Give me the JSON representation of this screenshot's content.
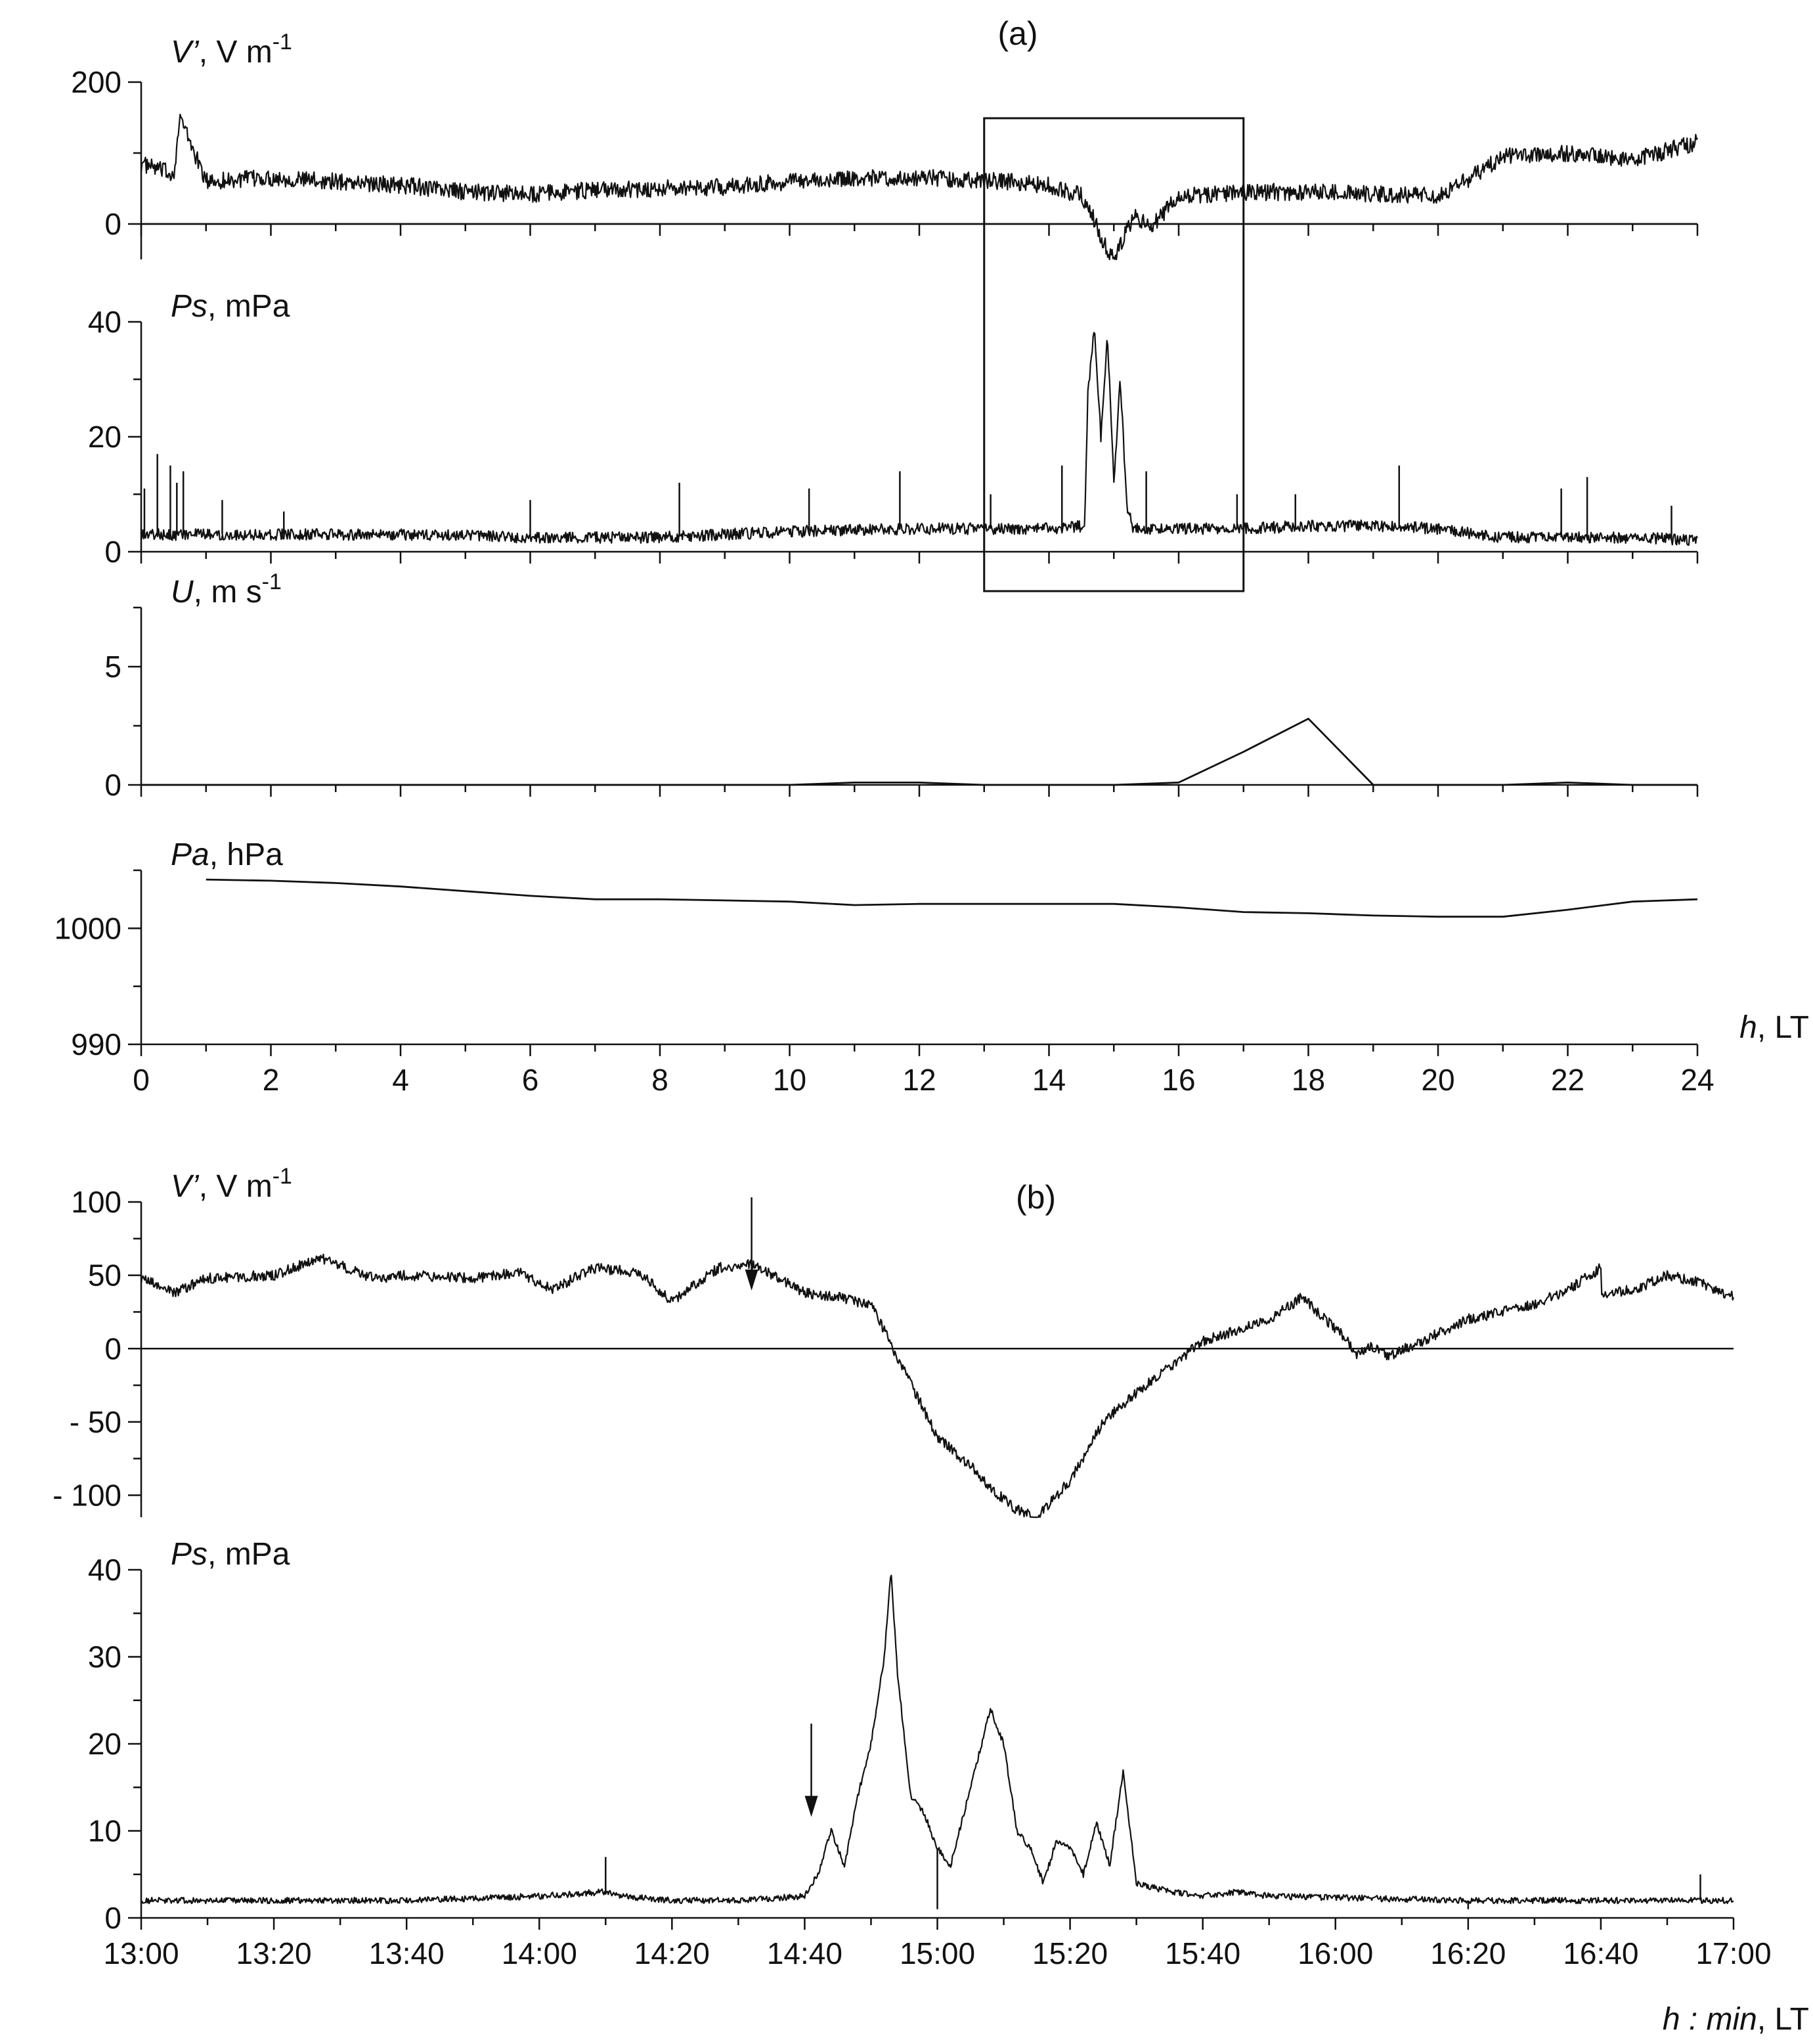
{
  "figure": {
    "background": "#ffffff",
    "ink": "#111111"
  },
  "chart_data": [
    {
      "id": "a1",
      "type": "line",
      "panel_label": "(a)",
      "ylabel_var": "V’",
      "ylabel_unit": "V m",
      "ylabel_exp": "-1",
      "ylim": [
        -50,
        200
      ],
      "yticks": [
        0,
        200
      ],
      "xlim": [
        0,
        24
      ],
      "zero_line": true,
      "highlight_box_x": [
        13,
        17
      ],
      "series": [
        {
          "x": [
            0,
            0.5,
            0.6,
            1,
            2,
            3,
            4,
            5,
            6,
            7,
            8,
            9,
            10,
            11,
            12,
            13,
            14,
            14.5,
            14.7,
            14.8,
            15,
            15.3,
            15.6,
            16,
            17,
            18,
            19,
            20,
            20.5,
            21,
            22,
            23,
            24
          ],
          "y": [
            85,
            70,
            150,
            60,
            65,
            60,
            55,
            45,
            42,
            48,
            50,
            52,
            60,
            65,
            65,
            62,
            55,
            40,
            5,
            -20,
            -50,
            10,
            -2,
            40,
            45,
            45,
            42,
            40,
            65,
            95,
            100,
            90,
            115
          ]
        }
      ]
    },
    {
      "id": "a2",
      "type": "line",
      "ylabel_var": "Ps",
      "ylabel_unit": ", mPa",
      "ylim": [
        0,
        40
      ],
      "yticks": [
        0,
        20,
        40
      ],
      "xlim": [
        0,
        24
      ],
      "series": [
        {
          "x": [
            0,
            1,
            2,
            4,
            6,
            8,
            10,
            12,
            13,
            14,
            14.55,
            14.6,
            14.7,
            14.8,
            14.9,
            15.0,
            15.1,
            15.2,
            15.3,
            16,
            17,
            18,
            19,
            20,
            21,
            22,
            23,
            24
          ],
          "y": [
            3,
            3,
            3,
            3,
            2.5,
            2.5,
            3.5,
            4,
            4,
            4,
            4.5,
            28,
            39,
            20,
            38,
            12,
            30,
            8,
            4,
            4,
            4,
            4.5,
            4.5,
            4,
            2.5,
            2.5,
            2.5,
            2
          ],
          "spikes": [
            [
              0.05,
              11
            ],
            [
              0.25,
              17
            ],
            [
              0.45,
              15
            ],
            [
              0.55,
              12
            ],
            [
              0.65,
              14
            ],
            [
              1.25,
              9
            ],
            [
              2.2,
              7
            ],
            [
              6,
              9
            ],
            [
              8.3,
              12
            ],
            [
              10.3,
              11
            ],
            [
              11.7,
              14
            ],
            [
              13.1,
              10
            ],
            [
              14.2,
              15
            ],
            [
              15.5,
              14
            ],
            [
              16.9,
              10
            ],
            [
              17.8,
              10
            ],
            [
              19.4,
              15
            ],
            [
              21.9,
              11
            ],
            [
              22.3,
              13
            ],
            [
              23.6,
              8
            ]
          ]
        }
      ]
    },
    {
      "id": "a3",
      "type": "line",
      "ylabel_var": "U",
      "ylabel_unit": ", m s",
      "ylabel_exp": "-1",
      "ylim": [
        0,
        7.5
      ],
      "yticks": [
        0,
        5
      ],
      "xlim": [
        0,
        24
      ],
      "series": [
        {
          "x": [
            0,
            10,
            11,
            12,
            13,
            14,
            15,
            16,
            17,
            18,
            19,
            20,
            21,
            22,
            23,
            24
          ],
          "y": [
            0,
            0,
            0.1,
            0.1,
            0,
            0,
            0,
            0.1,
            1.4,
            2.8,
            0,
            0,
            0,
            0.1,
            0,
            0
          ]
        }
      ]
    },
    {
      "id": "a4",
      "type": "line",
      "ylabel_var": "Pa",
      "ylabel_unit": ", hPa",
      "ylim": [
        990,
        1005
      ],
      "yticks": [
        990,
        1000
      ],
      "xlim": [
        0,
        24
      ],
      "xticks": [
        0,
        2,
        4,
        6,
        8,
        10,
        12,
        14,
        16,
        18,
        20,
        22,
        24
      ],
      "xlabel_var": "h",
      "xlabel_unit": ", LT",
      "series": [
        {
          "x": [
            1,
            2,
            3,
            4,
            5,
            6,
            7,
            8,
            9,
            10,
            11,
            12,
            13,
            14,
            15,
            16,
            17,
            18,
            19,
            20,
            21,
            22,
            23,
            24
          ],
          "y": [
            1004.2,
            1004.1,
            1003.9,
            1003.6,
            1003.2,
            1002.8,
            1002.5,
            1002.5,
            1002.4,
            1002.3,
            1002.0,
            1002.1,
            1002.1,
            1002.1,
            1002.1,
            1001.8,
            1001.4,
            1001.3,
            1001.1,
            1001.0,
            1001.0,
            1001.6,
            1002.3,
            1002.5
          ]
        }
      ]
    },
    {
      "id": "b1",
      "type": "line",
      "panel_label": "(b)",
      "ylabel_var": "V’",
      "ylabel_unit": "V m",
      "ylabel_exp": "-1",
      "ylim": [
        -115,
        100
      ],
      "yticks": [
        -100,
        -50,
        0,
        50,
        100
      ],
      "ytick_labels": [
        "- 100",
        "- 50",
        "0",
        "50",
        "100"
      ],
      "xlim": [
        0,
        240
      ],
      "zero_line": true,
      "arrow_at": [
        92,
        36
      ],
      "series": [
        {
          "x": [
            0,
            5,
            10,
            20,
            27,
            35,
            40,
            50,
            57,
            62,
            68,
            75,
            80,
            87,
            92,
            100,
            105,
            110,
            115,
            120,
            125,
            128,
            132,
            135,
            140,
            145,
            150,
            160,
            170,
            175,
            182,
            183,
            185,
            188,
            193,
            200,
            210,
            215,
            220,
            200,
            225,
            230,
            235,
            240
          ],
          "y": [
            48,
            38,
            48,
            50,
            62,
            48,
            50,
            48,
            52,
            40,
            55,
            52,
            32,
            55,
            58,
            38,
            35,
            30,
            -15,
            -60,
            -80,
            -95,
            -110,
            -115,
            -90,
            -50,
            -30,
            5,
            20,
            35,
            5,
            -5,
            2,
            -5,
            5,
            20,
            30,
            40,
            55,
            28,
            40,
            50,
            45,
            35
          ]
        }
      ]
    },
    {
      "id": "b2",
      "type": "line",
      "ylabel_var": "Ps",
      "ylabel_unit": ", mPa",
      "ylim": [
        0,
        40
      ],
      "yticks": [
        0,
        10,
        20,
        30,
        40
      ],
      "xlim": [
        0,
        240
      ],
      "xticks": [
        0,
        20,
        40,
        60,
        80,
        100,
        120,
        140,
        160,
        180,
        200,
        220,
        240
      ],
      "xtick_labels": [
        "13:00",
        "13:20",
        "13:40",
        "14:00",
        "14:20",
        "14:40",
        "15:00",
        "15:20",
        "15:40",
        "16:00",
        "16:20",
        "16:40",
        "17:00"
      ],
      "xlabel_var": "h : min",
      "xlabel_unit": ", LT",
      "arrow_at": [
        101,
        11
      ],
      "series": [
        {
          "x": [
            0,
            20,
            40,
            60,
            70,
            72,
            80,
            90,
            100,
            102,
            104,
            106,
            108,
            110,
            112,
            113,
            114,
            116,
            118,
            120,
            122,
            124,
            126,
            128,
            130,
            132,
            134,
            136,
            138,
            140,
            142,
            144,
            146,
            148,
            150,
            155,
            160,
            165,
            170,
            200,
            240
          ],
          "y": [
            2,
            2,
            2,
            2.5,
            3,
            2.5,
            2,
            2,
            2.5,
            5,
            10,
            6,
            14,
            20,
            30,
            40,
            28,
            14,
            12,
            8,
            6,
            12,
            18,
            24,
            20,
            10,
            8,
            4,
            9,
            8,
            5,
            11,
            6,
            17,
            4,
            3,
            2.5,
            3,
            2.5,
            2,
            2
          ],
          "spikes": [
            [
              70,
              7
            ],
            [
              120,
              1
            ],
            [
              200,
              1
            ],
            [
              210,
              2
            ],
            [
              235,
              5
            ]
          ]
        }
      ]
    }
  ]
}
